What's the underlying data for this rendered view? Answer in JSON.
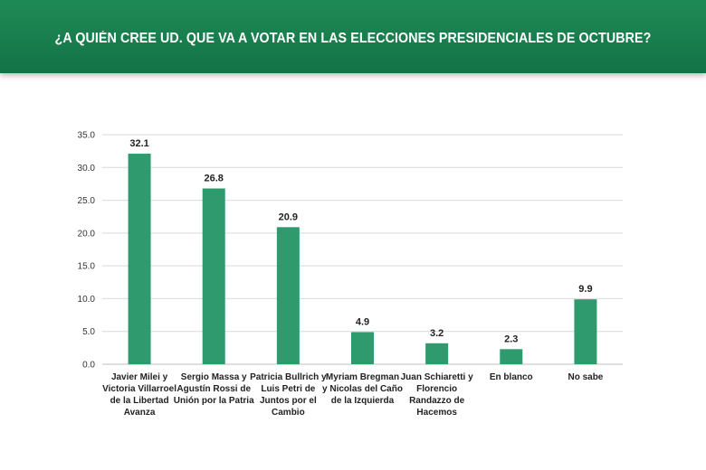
{
  "header": {
    "title": "¿A QUIÉN CREE UD. QUE VA A VOTAR EN LAS ELECCIONES PRESIDENCIALES DE OCTUBRE?"
  },
  "colors": {
    "header_bg": "#137347",
    "bar": "#2e9a6e",
    "grid": "#d9d9d9"
  },
  "chart_data": {
    "type": "bar",
    "title": "¿A QUIÉN CREE UD. QUE VA A VOTAR EN LAS ELECCIONES PRESIDENCIALES DE OCTUBRE?",
    "xlabel": "",
    "ylabel": "",
    "ylim": [
      0,
      35
    ],
    "yticks": [
      "0.0",
      "5.0",
      "10.0",
      "15.0",
      "20.0",
      "25.0",
      "30.0",
      "35.0"
    ],
    "grid": true,
    "legend": "none",
    "categories": [
      [
        "Javier Milei y",
        "Victoria Villarroel",
        "de la Libertad",
        "Avanza"
      ],
      [
        "Sergio Massa y",
        "Agustín Rossi de",
        "Unión por la Patria"
      ],
      [
        "Patricia Bullrich y",
        "Luis Petri de",
        "Juntos por el",
        "Cambio"
      ],
      [
        "Myriam Bregman",
        "y Nicolas del Caño",
        "de la Izquierda"
      ],
      [
        "Juan Schiaretti y",
        "Florencio",
        "Randazzo de",
        "Hacemos"
      ],
      [
        "En blanco"
      ],
      [
        "No sabe"
      ]
    ],
    "values": [
      32.1,
      26.8,
      20.9,
      4.9,
      3.2,
      2.3,
      9.9
    ],
    "data_labels": [
      "32.1",
      "26.8",
      "20.9",
      "4.9",
      "3.2",
      "2.3",
      "9.9"
    ]
  }
}
